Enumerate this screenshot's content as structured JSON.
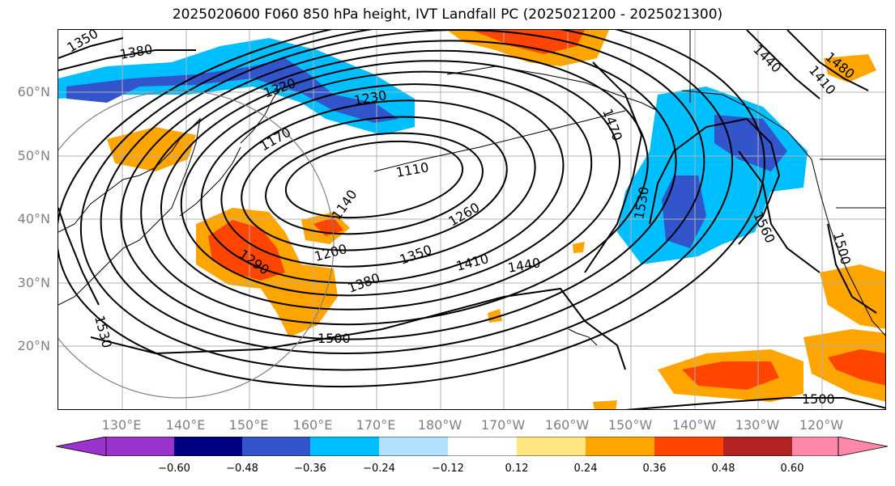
{
  "title": "2025020600 F060 850 hPa height, IVT Landfall PC (2025021200 - 2025021300)",
  "latitude_labels": [
    "60°N",
    "50°N",
    "40°N",
    "30°N",
    "20°N"
  ],
  "longitude_labels": [
    "130°E",
    "140°E",
    "150°E",
    "160°E",
    "170°E",
    "180°W",
    "170°W",
    "160°W",
    "150°W",
    "140°W",
    "130°W",
    "120°W"
  ],
  "colorbar": {
    "ticks": [
      "−0.60",
      "−0.48",
      "−0.36",
      "−0.24",
      "−0.12",
      "0.12",
      "0.24",
      "0.36",
      "0.48",
      "0.60"
    ],
    "colors": [
      "#9933cc",
      "#000080",
      "#3355cc",
      "#00bfff",
      "#b0e2ff",
      "#ffffff",
      "#ffe680",
      "#ffa500",
      "#ff4500",
      "#b22222",
      "#ff88aa",
      "#ff88aa"
    ]
  },
  "contour_labels": [
    "1350",
    "1380",
    "1320",
    "1230",
    "1170",
    "1110",
    "1140",
    "1200",
    "1290",
    "1260",
    "1350",
    "1410",
    "1440",
    "1380",
    "1500",
    "1530",
    "1470",
    "1440",
    "1480",
    "1410",
    "1530",
    "1560",
    "1500",
    "1500"
  ],
  "shading_colors": {
    "orange": "#ffa500",
    "red_orange": "#ff4500",
    "blue": "#3355cc",
    "light_blue": "#00bfff",
    "very_light_blue": "#b0e2ff"
  }
}
